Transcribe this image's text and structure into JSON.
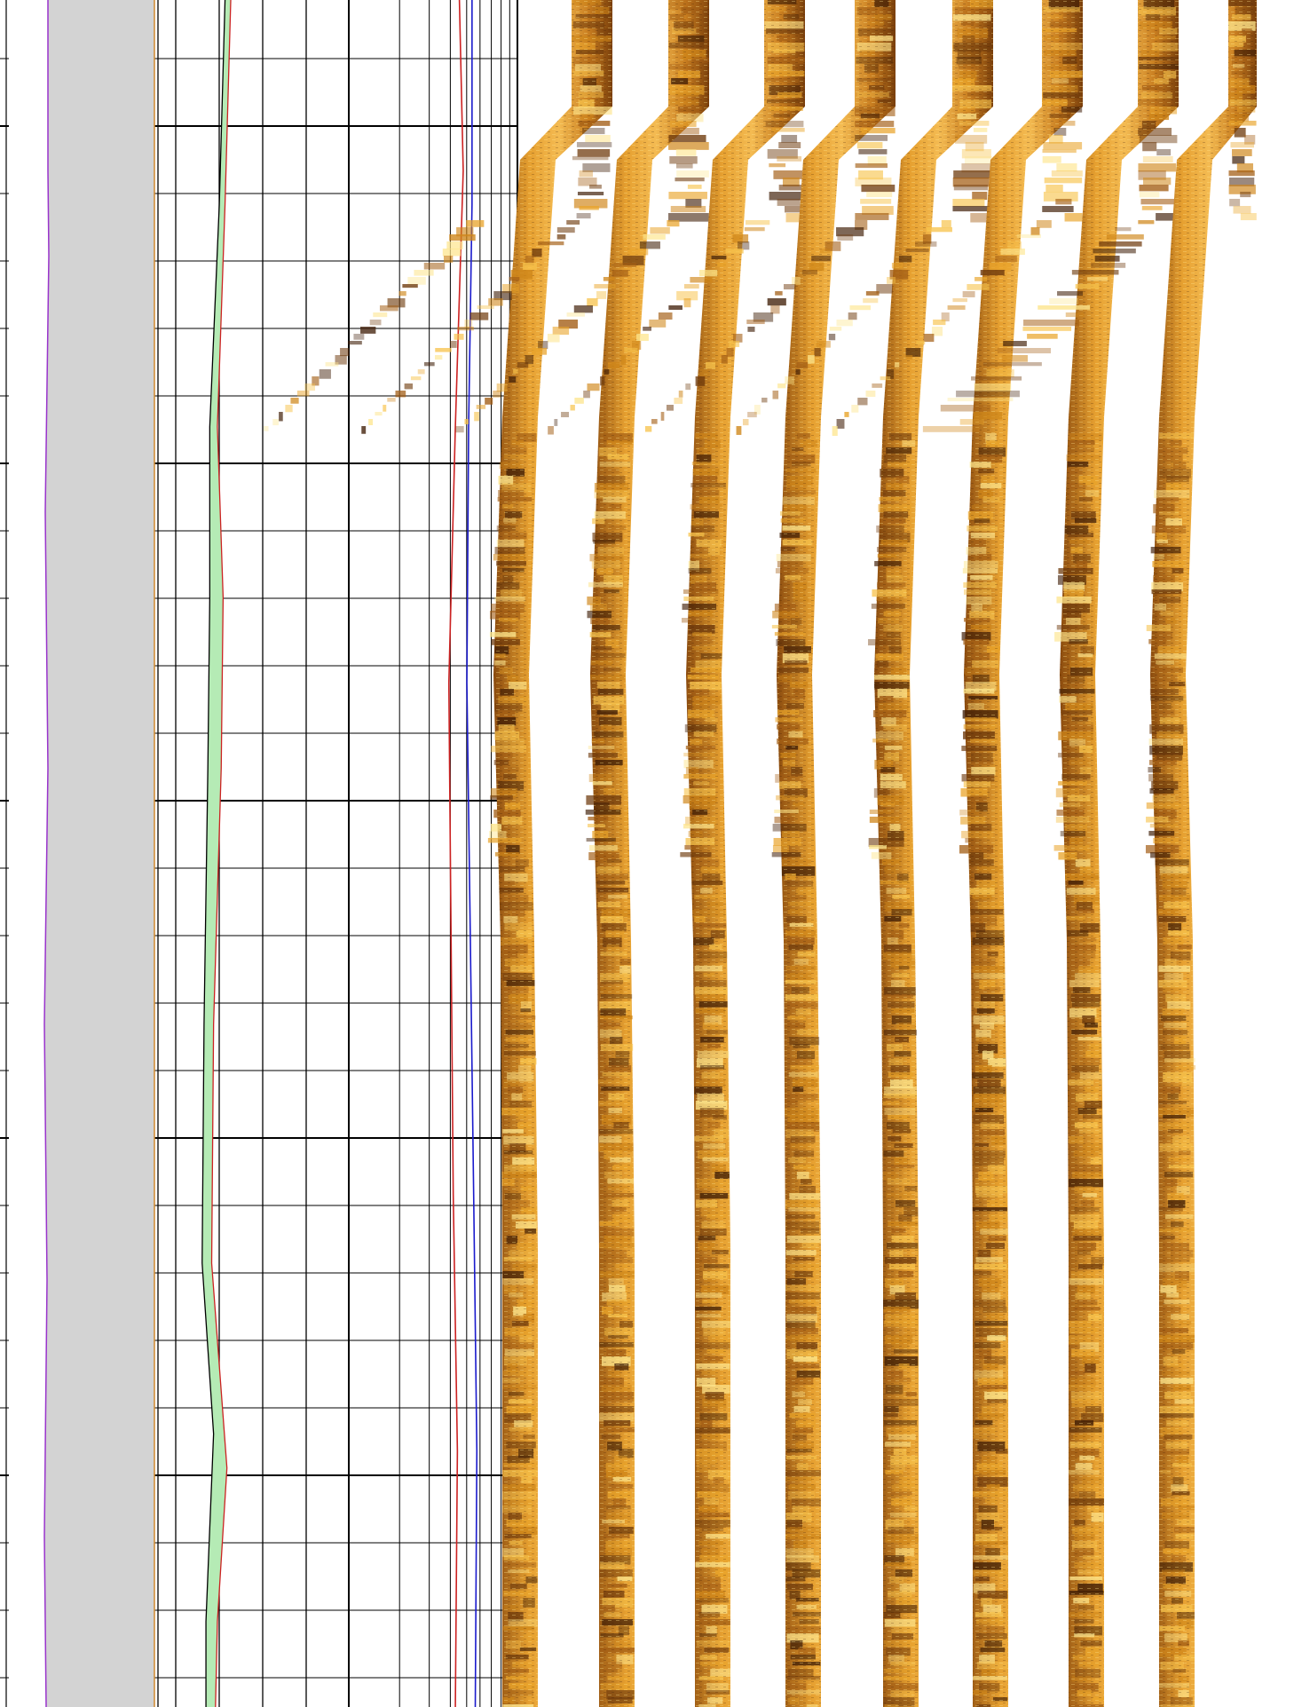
{
  "chart_data": [
    {
      "type": "area",
      "track": "depth-track",
      "series": [
        {
          "color": "#9933cc",
          "fill": "#d3d3d3",
          "points": [
            [
              3,
              0
            ],
            [
              3,
              0.1
            ],
            [
              3.5,
              0.15
            ],
            [
              1.5,
              0.3
            ],
            [
              3,
              0.45
            ],
            [
              1,
              0.6
            ],
            [
              2.5,
              0.75
            ],
            [
              1,
              0.9
            ],
            [
              2,
              1
            ]
          ]
        },
        {
          "color": "#d08a30",
          "points": [
            [
              0,
              0
            ],
            [
              0,
              1
            ]
          ]
        }
      ]
    },
    {
      "type": "line",
      "track": "linear-track",
      "xlim": [
        0,
        10
      ],
      "series": [
        {
          "color": "#000000",
          "fill": "#b5ebb5",
          "points": [
            [
              3.7,
              0
            ],
            [
              3.4,
              0.12
            ],
            [
              2.9,
              0.25
            ],
            [
              2.9,
              0.35
            ],
            [
              2.8,
              0.45
            ],
            [
              2.6,
              0.6
            ],
            [
              2.5,
              0.74
            ],
            [
              3.1,
              0.84
            ],
            [
              2.7,
              0.95
            ],
            [
              2.7,
              1
            ]
          ]
        },
        {
          "color": "#cc2222",
          "points": [
            [
              4,
              0
            ],
            [
              3.7,
              0.12
            ],
            [
              3.3,
              0.25
            ],
            [
              3.6,
              0.35
            ],
            [
              3.5,
              0.45
            ],
            [
              3.1,
              0.6
            ],
            [
              3,
              0.74
            ],
            [
              3.8,
              0.86
            ],
            [
              3.3,
              0.95
            ],
            [
              3.2,
              1
            ]
          ]
        }
      ]
    },
    {
      "type": "line",
      "track": "log-track",
      "scale": "log",
      "series": [
        {
          "color": "#cc2222",
          "points": [
            [
              38,
              0
            ],
            [
              40,
              0.1
            ],
            [
              36,
              0.25
            ],
            [
              33,
              0.4
            ],
            [
              34,
              0.55
            ],
            [
              35,
              0.7
            ],
            [
              37,
              0.85
            ],
            [
              36,
              1
            ]
          ]
        },
        {
          "color": "#1a1acc",
          "points": [
            [
              45,
              0
            ],
            [
              45,
              0.12
            ],
            [
              43,
              0.25
            ],
            [
              42,
              0.4
            ],
            [
              44,
              0.55
            ],
            [
              46,
              0.7
            ],
            [
              48,
              0.85
            ],
            [
              47,
              1
            ]
          ]
        }
      ]
    },
    {
      "type": "heatmap",
      "track": "image-track",
      "strips": 8,
      "palette": [
        "#3e1c05",
        "#6e3a0c",
        "#a35e15",
        "#cf8619",
        "#e9a42a",
        "#f7c34c",
        "#fde58c"
      ]
    }
  ]
}
